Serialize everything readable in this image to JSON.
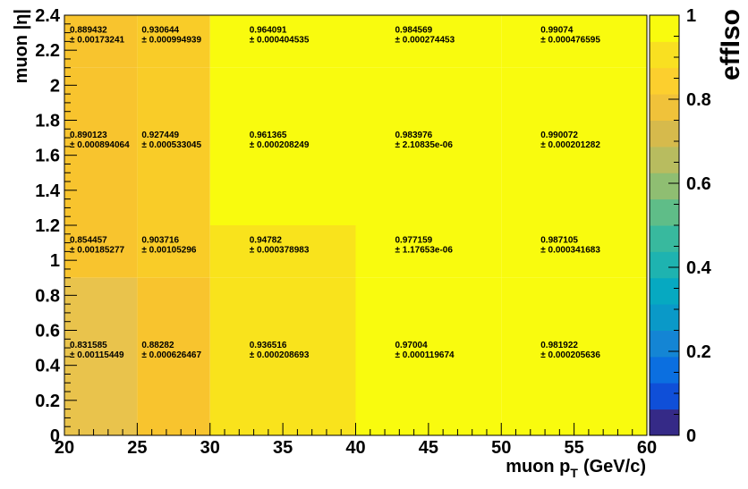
{
  "chart_data": {
    "type": "heatmap",
    "title": "",
    "xlabel": "muon p",
    "xlabel_sub": "T",
    "xlabel_unit": "(GeV/c)",
    "ylabel": "muon |η|",
    "zlabel": "effIso",
    "x_edges": [
      20,
      25,
      30,
      40,
      50,
      60
    ],
    "y_edges": [
      0,
      0.9,
      1.2,
      2.1,
      2.4
    ],
    "xlim": [
      20,
      60
    ],
    "ylim": [
      0,
      2.4
    ],
    "zlim": [
      0,
      1
    ],
    "x_ticks": [
      "20",
      "25",
      "30",
      "35",
      "40",
      "45",
      "50",
      "55",
      "60"
    ],
    "y_ticks": [
      "0",
      "0.2",
      "0.4",
      "0.6",
      "0.8",
      "1",
      "1.2",
      "1.4",
      "1.6",
      "1.8",
      "2",
      "2.2",
      "2.4"
    ],
    "z_ticks": [
      "0",
      "0.2",
      "0.4",
      "0.6",
      "0.8",
      "1"
    ],
    "error_prefix": "±",
    "cells": [
      {
        "i": 0,
        "j": 0,
        "value": "0.831585",
        "error": "0.00115449"
      },
      {
        "i": 1,
        "j": 0,
        "value": "0.88282",
        "error": "0.000626467"
      },
      {
        "i": 2,
        "j": 0,
        "value": "0.936516",
        "error": "0.000208693"
      },
      {
        "i": 3,
        "j": 0,
        "value": "0.97004",
        "error": "0.000119674"
      },
      {
        "i": 4,
        "j": 0,
        "value": "0.981922",
        "error": "0.000205636"
      },
      {
        "i": 0,
        "j": 1,
        "value": "0.854457",
        "error": "0.00185277"
      },
      {
        "i": 1,
        "j": 1,
        "value": "0.903716",
        "error": "0.00105296"
      },
      {
        "i": 2,
        "j": 1,
        "value": "0.94782",
        "error": "0.000378983"
      },
      {
        "i": 3,
        "j": 1,
        "value": "0.977159",
        "error": "1.17653e-06"
      },
      {
        "i": 4,
        "j": 1,
        "value": "0.987105",
        "error": "0.000341683"
      },
      {
        "i": 0,
        "j": 2,
        "value": "0.890123",
        "error": "0.000894064"
      },
      {
        "i": 1,
        "j": 2,
        "value": "0.927449",
        "error": "0.000533045"
      },
      {
        "i": 2,
        "j": 2,
        "value": "0.961365",
        "error": "0.000208249"
      },
      {
        "i": 3,
        "j": 2,
        "value": "0.983976",
        "error": "2.10835e-06"
      },
      {
        "i": 4,
        "j": 2,
        "value": "0.990072",
        "error": "0.000201282"
      },
      {
        "i": 0,
        "j": 3,
        "value": "0.889432",
        "error": "0.00173241"
      },
      {
        "i": 1,
        "j": 3,
        "value": "0.930644",
        "error": "0.000994939"
      },
      {
        "i": 2,
        "j": 3,
        "value": "0.964091",
        "error": "0.000404535"
      },
      {
        "i": 3,
        "j": 3,
        "value": "0.984569",
        "error": "0.000274453"
      },
      {
        "i": 4,
        "j": 3,
        "value": "0.99074",
        "error": "0.000476595"
      }
    ],
    "palette": [
      "#352a87",
      "#0f4fd8",
      "#0b6fe0",
      "#1485d4",
      "#0a99c8",
      "#06a9c1",
      "#1eb3b0",
      "#38b99e",
      "#5fbd88",
      "#8fbe72",
      "#b8bc5f",
      "#d6ba4c",
      "#f0c23a",
      "#fccf2e",
      "#f9e021",
      "#f9fb0e"
    ],
    "colors": {
      "cell_low": "#e9c34c",
      "cell_mid": "#f8c42e",
      "cell_midhigh": "#f9cc28",
      "cell_high": "#f9e31c",
      "cell_top": "#f9fb0e"
    }
  }
}
